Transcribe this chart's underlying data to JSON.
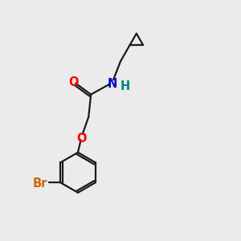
{
  "background_color": "#ebebeb",
  "bond_color": "#1a1a1a",
  "O_color": "#ff0000",
  "N_color": "#0000cc",
  "H_color": "#008080",
  "Br_color": "#cc6600",
  "font_size": 10.5,
  "lw": 1.6,
  "xlim": [
    0,
    10
  ],
  "ylim": [
    0,
    10
  ]
}
